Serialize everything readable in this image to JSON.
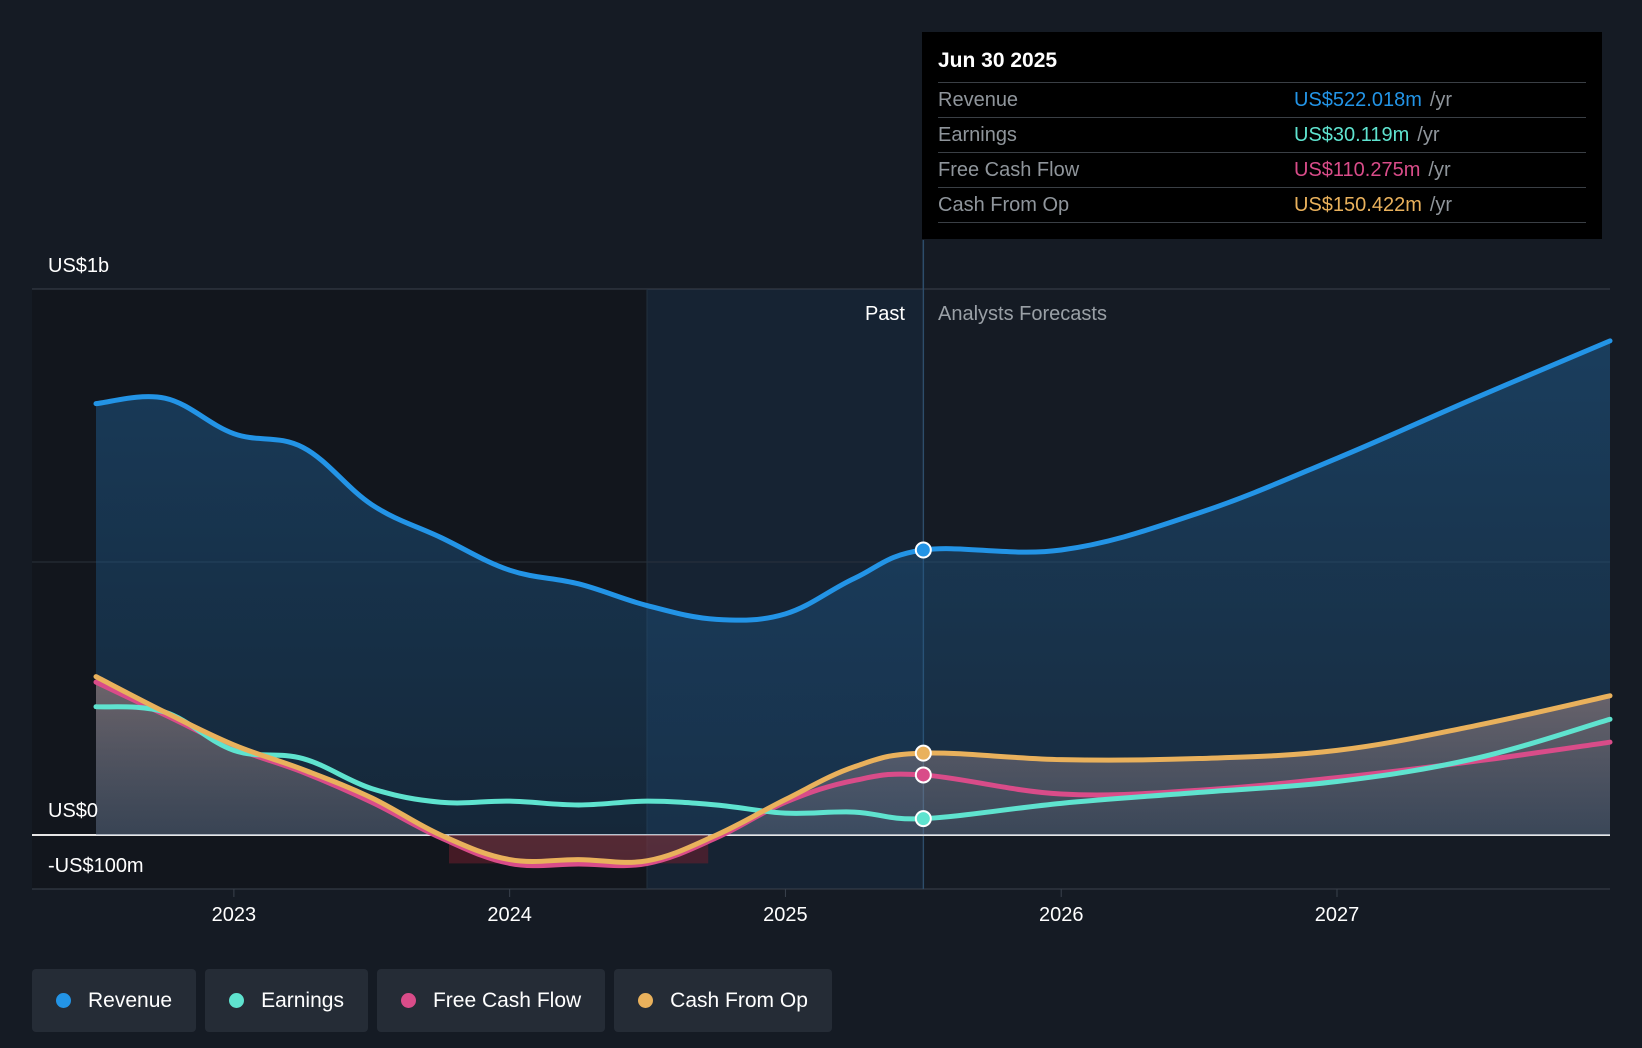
{
  "chart_data": {
    "type": "line",
    "y_axis": {
      "top_label": "US$1b",
      "zero_label": "US$0",
      "bottom_label": "-US$100m",
      "ylim": [
        -100,
        1000
      ]
    },
    "x_axis": {
      "ticks": [
        "2023",
        "2024",
        "2025",
        "2026",
        "2027"
      ],
      "xlim": [
        2022.5,
        2027.99
      ]
    },
    "regions": {
      "past_label": "Past",
      "forecast_label": "Analysts Forecasts",
      "divider_x": 2025.5
    },
    "series": [
      {
        "name": "Revenue",
        "color": "#2394e6",
        "points": [
          [
            2022.5,
            790
          ],
          [
            2022.75,
            800
          ],
          [
            2023.0,
            735
          ],
          [
            2023.25,
            710
          ],
          [
            2023.5,
            605
          ],
          [
            2023.75,
            545
          ],
          [
            2024.0,
            485
          ],
          [
            2024.25,
            460
          ],
          [
            2024.5,
            420
          ],
          [
            2024.75,
            395
          ],
          [
            2025.0,
            405
          ],
          [
            2025.25,
            470
          ],
          [
            2025.5,
            522
          ],
          [
            2026.0,
            522
          ],
          [
            2026.5,
            590
          ],
          [
            2027.0,
            690
          ],
          [
            2027.5,
            800
          ],
          [
            2027.99,
            905
          ]
        ]
      },
      {
        "name": "Earnings",
        "color": "#5fe3cf",
        "points": [
          [
            2022.5,
            235
          ],
          [
            2022.75,
            225
          ],
          [
            2023.0,
            155
          ],
          [
            2023.25,
            140
          ],
          [
            2023.5,
            85
          ],
          [
            2023.75,
            60
          ],
          [
            2024.0,
            62
          ],
          [
            2024.25,
            55
          ],
          [
            2024.5,
            62
          ],
          [
            2024.75,
            55
          ],
          [
            2025.0,
            40
          ],
          [
            2025.25,
            42
          ],
          [
            2025.5,
            30
          ],
          [
            2026.0,
            58
          ],
          [
            2026.5,
            78
          ],
          [
            2027.0,
            98
          ],
          [
            2027.5,
            140
          ],
          [
            2027.99,
            212
          ]
        ]
      },
      {
        "name": "Free Cash Flow",
        "color": "#d94c89",
        "points": [
          [
            2022.5,
            280
          ],
          [
            2022.75,
            220
          ],
          [
            2023.0,
            160
          ],
          [
            2023.25,
            115
          ],
          [
            2023.5,
            60
          ],
          [
            2023.75,
            -5
          ],
          [
            2024.0,
            -52
          ],
          [
            2024.25,
            -53
          ],
          [
            2024.5,
            -52
          ],
          [
            2024.75,
            -5
          ],
          [
            2025.0,
            60
          ],
          [
            2025.25,
            100
          ],
          [
            2025.5,
            110
          ],
          [
            2026.0,
            75
          ],
          [
            2026.5,
            82
          ],
          [
            2027.0,
            105
          ],
          [
            2027.5,
            135
          ],
          [
            2027.99,
            170
          ]
        ]
      },
      {
        "name": "Cash From Op",
        "color": "#e9b15c",
        "points": [
          [
            2022.5,
            290
          ],
          [
            2022.75,
            225
          ],
          [
            2023.0,
            165
          ],
          [
            2023.25,
            120
          ],
          [
            2023.5,
            68
          ],
          [
            2023.75,
            0
          ],
          [
            2024.0,
            -45
          ],
          [
            2024.25,
            -45
          ],
          [
            2024.5,
            -47
          ],
          [
            2024.75,
            0
          ],
          [
            2025.0,
            65
          ],
          [
            2025.25,
            125
          ],
          [
            2025.5,
            150
          ],
          [
            2026.0,
            138
          ],
          [
            2026.5,
            140
          ],
          [
            2027.0,
            155
          ],
          [
            2027.5,
            200
          ],
          [
            2027.99,
            255
          ]
        ]
      }
    ]
  },
  "tooltip": {
    "date": "Jun 30 2025",
    "rows": [
      {
        "label": "Revenue",
        "value": "US$522.018m",
        "unit": "/yr",
        "color": "#2394e6"
      },
      {
        "label": "Earnings",
        "value": "US$30.119m",
        "unit": "/yr",
        "color": "#5fe3cf"
      },
      {
        "label": "Free Cash Flow",
        "value": "US$110.275m",
        "unit": "/yr",
        "color": "#d94c89"
      },
      {
        "label": "Cash From Op",
        "value": "US$150.422m",
        "unit": "/yr",
        "color": "#e9b15c"
      }
    ]
  },
  "legend": [
    {
      "label": "Revenue",
      "color": "#2394e6"
    },
    {
      "label": "Earnings",
      "color": "#5fe3cf"
    },
    {
      "label": "Free Cash Flow",
      "color": "#d94c89"
    },
    {
      "label": "Cash From Op",
      "color": "#e9b15c"
    }
  ]
}
